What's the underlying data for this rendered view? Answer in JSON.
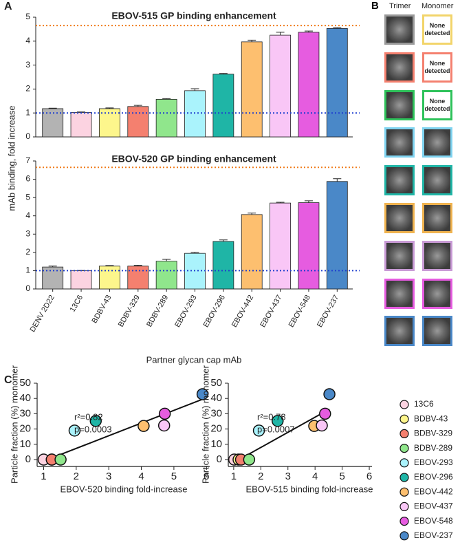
{
  "chart_data": [
    {
      "type": "bar",
      "panel": "A",
      "title": "EBOV-515 GP binding enhancement",
      "y_label": "mAb binding, fold increase",
      "values": [
        1.18,
        1.02,
        1.18,
        1.27,
        1.57,
        1.93,
        2.62,
        3.97,
        4.25,
        4.37,
        4.53
      ],
      "errors": [
        0.02,
        0.02,
        0.03,
        0.05,
        0.03,
        0.08,
        0.03,
        0.07,
        0.12,
        0.05,
        0.03
      ],
      "colors": [
        "#b3b3b3",
        "#fcd3e1",
        "#fdf68c",
        "#f4806f",
        "#90e68c",
        "#aaf3fc",
        "#1fb5a6",
        "#fdbf6f",
        "#f9c6f6",
        "#e65ce0",
        "#4a88c8"
      ],
      "ylim": [
        0,
        5
      ],
      "yticks": [
        0,
        1,
        2,
        3,
        4,
        5
      ],
      "reference_lines": [
        {
          "value": 1,
          "color": "#1f3fd0"
        },
        {
          "value": 4.65,
          "color": "#f07c1b"
        }
      ]
    },
    {
      "type": "bar",
      "title": "EBOV-520 GP binding enhancement",
      "x_label": "Partner glycan cap mAb",
      "categories": [
        "DENV 2D22",
        "13C6",
        "BDBV-43",
        "BDBV-329",
        "BDBV-289",
        "EBOV-293",
        "EBOV-296",
        "EBOV-442",
        "EBOV-437",
        "EBOV-548",
        "EBOV-237"
      ],
      "values": [
        1.2,
        1.0,
        1.25,
        1.25,
        1.52,
        1.95,
        2.6,
        4.07,
        4.7,
        4.72,
        5.88
      ],
      "errors": [
        0.05,
        0.01,
        0.03,
        0.05,
        0.1,
        0.06,
        0.08,
        0.08,
        0.04,
        0.1,
        0.15
      ],
      "colors": [
        "#b3b3b3",
        "#fcd3e1",
        "#fdf68c",
        "#f4806f",
        "#90e68c",
        "#aaf3fc",
        "#1fb5a6",
        "#fdbf6f",
        "#f9c6f6",
        "#e65ce0",
        "#4a88c8"
      ],
      "ylim": [
        0,
        7
      ],
      "yticks": [
        0,
        1,
        2,
        3,
        4,
        5,
        6,
        7
      ],
      "reference_lines": [
        {
          "value": 1,
          "color": "#1f3fd0"
        },
        {
          "value": 6.65,
          "color": "#f07c1b"
        }
      ]
    },
    {
      "type": "scatter",
      "panel": "C",
      "x_label": "EBOV-520 binding fold-increase",
      "y_label": "Particle fraction (%) monomer",
      "series": [
        {
          "name": "13C6",
          "color": "#fcd3e1",
          "x": [
            1.0
          ],
          "values": [
            0
          ]
        },
        {
          "name": "BDBV-43",
          "color": "#fdf68c",
          "x": [
            1.25
          ],
          "values": [
            0
          ]
        },
        {
          "name": "BDBV-329",
          "color": "#f4806f",
          "x": [
            1.25
          ],
          "values": [
            0
          ]
        },
        {
          "name": "BDBV-289",
          "color": "#90e68c",
          "x": [
            1.52
          ],
          "values": [
            0
          ]
        },
        {
          "name": "EBOV-293",
          "color": "#aaf3fc",
          "x": [
            1.95
          ],
          "values": [
            19
          ]
        },
        {
          "name": "EBOV-296",
          "color": "#1fb5a6",
          "x": [
            2.6
          ],
          "values": [
            25.3
          ]
        },
        {
          "name": "EBOV-442",
          "color": "#fdbf6f",
          "x": [
            4.07
          ],
          "values": [
            22
          ]
        },
        {
          "name": "EBOV-437",
          "color": "#f9c6f6",
          "x": [
            4.7
          ],
          "values": [
            22.3
          ]
        },
        {
          "name": "EBOV-548",
          "color": "#e65ce0",
          "x": [
            4.72
          ],
          "values": [
            30
          ]
        },
        {
          "name": "EBOV-237",
          "color": "#4a88c8",
          "x": [
            5.88
          ],
          "values": [
            42.8
          ]
        }
      ],
      "fit": {
        "x": [
          1.0,
          5.88
        ],
        "y": [
          -1,
          39.5
        ]
      },
      "annotations": [
        "r²=0.82",
        "p=0.0003"
      ],
      "xlim": [
        0.8,
        6.1
      ],
      "ylim": [
        -4.5,
        50
      ],
      "xticks": [
        1,
        2,
        3,
        4,
        5,
        6
      ],
      "yticks": [
        0,
        10,
        20,
        30,
        40,
        50
      ],
      "legend": "right"
    },
    {
      "type": "scatter",
      "x_label": "EBOV-515 binding fold-increase",
      "y_label": "Particle fraction (%) monomer",
      "series": [
        {
          "color": "#fcd3e1",
          "x": [
            1.02
          ],
          "values": [
            0
          ]
        },
        {
          "color": "#fdf68c",
          "x": [
            1.18
          ],
          "values": [
            0
          ]
        },
        {
          "color": "#f4806f",
          "x": [
            1.27
          ],
          "values": [
            0
          ]
        },
        {
          "color": "#90e68c",
          "x": [
            1.57
          ],
          "values": [
            0
          ]
        },
        {
          "color": "#aaf3fc",
          "x": [
            1.93
          ],
          "values": [
            19
          ]
        },
        {
          "color": "#1fb5a6",
          "x": [
            2.62
          ],
          "values": [
            25.3
          ]
        },
        {
          "color": "#fdbf6f",
          "x": [
            3.97
          ],
          "values": [
            22
          ]
        },
        {
          "color": "#f9c6f6",
          "x": [
            4.25
          ],
          "values": [
            22.3
          ]
        },
        {
          "color": "#e65ce0",
          "x": [
            4.37
          ],
          "values": [
            30
          ]
        },
        {
          "color": "#4a88c8",
          "x": [
            4.53
          ],
          "values": [
            42.8
          ]
        }
      ],
      "fit": {
        "x": [
          1.2,
          4.53
        ],
        "y": [
          0,
          33
        ]
      },
      "annotations": [
        "r²=0.78",
        "p=0.0007"
      ],
      "xlim": [
        0.8,
        6.1
      ],
      "ylim": [
        -4.5,
        50
      ],
      "xticks": [
        1,
        2,
        3,
        4,
        5,
        6
      ],
      "yticks": [
        0,
        10,
        20,
        30,
        40,
        50
      ]
    }
  ],
  "panel_b": {
    "label": "B",
    "columns": [
      "Trimer",
      "Monomer"
    ],
    "rows": [
      {
        "trimer_color": "#9a9a9a",
        "monomer_color": "#f2d46a",
        "monomer_text": "None detected"
      },
      {
        "trimer_color": "#f4806f",
        "monomer_color": "#f4806f",
        "monomer_text": "None detected"
      },
      {
        "trimer_color": "#2ec25a",
        "monomer_color": "#2ec25a",
        "monomer_text": "None detected"
      },
      {
        "trimer_color": "#7fd3f0",
        "monomer_color": "#7fd3f0"
      },
      {
        "trimer_color": "#1fb5a6",
        "monomer_color": "#1fb5a6"
      },
      {
        "trimer_color": "#f0b34f",
        "monomer_color": "#f0b34f"
      },
      {
        "trimer_color": "#c99bd6",
        "monomer_color": "#c99bd6"
      },
      {
        "trimer_color": "#e65ce0",
        "monomer_color": "#e65ce0"
      },
      {
        "trimer_color": "#4a88c8",
        "monomer_color": "#4a88c8"
      }
    ]
  }
}
